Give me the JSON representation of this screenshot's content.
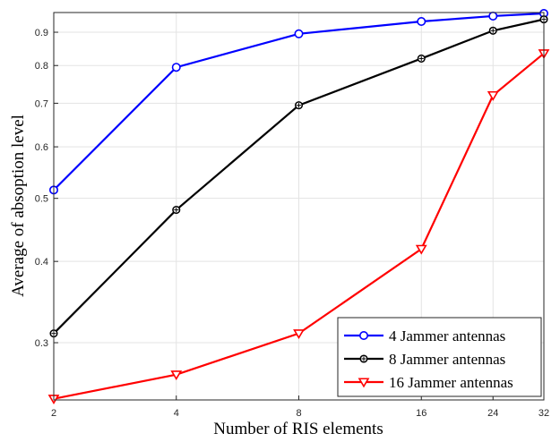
{
  "chart_data": {
    "type": "line",
    "x_scale": "log",
    "y_scale": "log",
    "xlabel": "Number of RIS elements",
    "ylabel": "Average of absoption level",
    "xlim": [
      2,
      32
    ],
    "ylim": [
      0.245,
      0.965
    ],
    "grid": true,
    "legend_position": "bottom-right",
    "x_ticks": [
      2,
      4,
      8,
      16,
      24,
      32
    ],
    "y_ticks": [
      0.3,
      0.4,
      0.5,
      0.6,
      0.7,
      0.8,
      0.9
    ],
    "x": [
      2,
      4,
      8,
      16,
      24,
      32
    ],
    "series": [
      {
        "name": "4 Jammer antennas",
        "color": "#0000ff",
        "marker": "circle",
        "values": [
          0.515,
          0.795,
          0.895,
          0.935,
          0.953,
          0.962
        ]
      },
      {
        "name": "8 Jammer antennas",
        "color": "#000000",
        "marker": "circle-star",
        "values": [
          0.31,
          0.48,
          0.695,
          0.82,
          0.905,
          0.942
        ]
      },
      {
        "name": "16 Jammer antennas",
        "color": "#ff0000",
        "marker": "triangle-down",
        "values": [
          0.246,
          0.268,
          0.31,
          0.418,
          0.72,
          0.835
        ]
      }
    ]
  }
}
